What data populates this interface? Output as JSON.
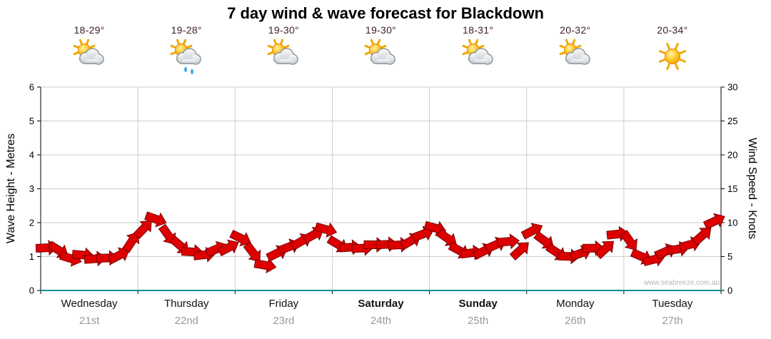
{
  "title": "7 day wind & wave forecast for Blackdown",
  "watermark": "www.seabreeze.com.au",
  "colors": {
    "wind": "#dd0000",
    "wind_outline": "#7a0000",
    "grid": "#cccccc",
    "baseline": "#009090",
    "axis": "#000000",
    "temp_text": "#402020",
    "date_text": "#999999"
  },
  "days": [
    {
      "name": "Wednesday",
      "date": "21st",
      "temp": "18-29°",
      "icon": "sun-cloud",
      "bold": false
    },
    {
      "name": "Thursday",
      "date": "22nd",
      "temp": "19-28°",
      "icon": "sun-cloud-rain",
      "bold": false
    },
    {
      "name": "Friday",
      "date": "23rd",
      "temp": "19-30°",
      "icon": "sun-cloud",
      "bold": false
    },
    {
      "name": "Saturday",
      "date": "24th",
      "temp": "19-30°",
      "icon": "sun-cloud",
      "bold": true
    },
    {
      "name": "Sunday",
      "date": "25th",
      "temp": "18-31°",
      "icon": "sun-cloud",
      "bold": true
    },
    {
      "name": "Monday",
      "date": "26th",
      "temp": "20-32°",
      "icon": "sun-cloud",
      "bold": false
    },
    {
      "name": "Tuesday",
      "date": "27th",
      "temp": "20-34°",
      "icon": "sunny",
      "bold": false
    }
  ],
  "chart_data": {
    "type": "area",
    "title": "7 day wind & wave forecast for Blackdown",
    "categories": [
      "Wednesday 21st",
      "Thursday 22nd",
      "Friday 23rd",
      "Saturday 24th",
      "Sunday 25th",
      "Monday 26th",
      "Tuesday 27th"
    ],
    "points_per_day": 8,
    "series": [
      {
        "name": "Wind Speed",
        "unit": "knots",
        "style": "red wind arrows band",
        "values": [
          6.5,
          6,
          5,
          5.5,
          4.5,
          5,
          5.5,
          7,
          9,
          10.5,
          8,
          6.5,
          6,
          5.5,
          6,
          6.5,
          7.5,
          5.5,
          4,
          5.5,
          6.5,
          7.5,
          8.5,
          9,
          7,
          6.5,
          6.5,
          7,
          6.5,
          7,
          7.5,
          8.5,
          9,
          7.5,
          6,
          5.5,
          6,
          6.5,
          7,
          6,
          9,
          7,
          5.5,
          5,
          5.5,
          6.5,
          6,
          8.5,
          7,
          5,
          4.5,
          5.5,
          6,
          6.5,
          8,
          10
        ]
      }
    ],
    "left_axis": {
      "label": "Wave Height - Metres",
      "range": [
        0,
        6
      ],
      "ticks": [
        0,
        1,
        2,
        3,
        4,
        5,
        6
      ]
    },
    "right_axis": {
      "label": "Wind Speed - Knots",
      "range": [
        0,
        30
      ],
      "ticks": [
        0,
        5,
        10,
        15,
        20,
        25,
        30
      ]
    },
    "grid": true,
    "legend": "none"
  }
}
